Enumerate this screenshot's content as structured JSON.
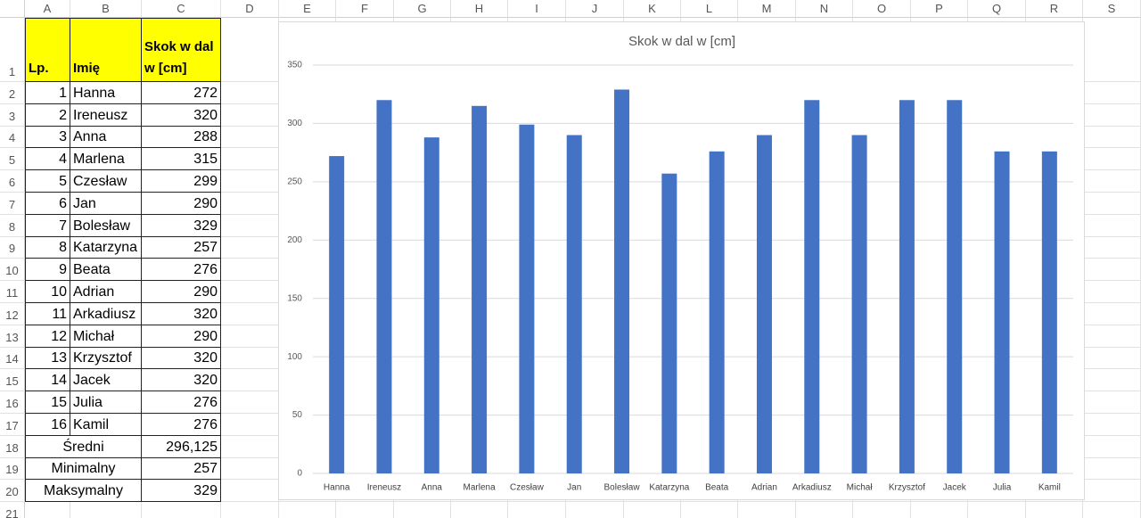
{
  "sheet": {
    "column_headers": [
      "A",
      "B",
      "C",
      "D",
      "E",
      "F",
      "G",
      "H",
      "I",
      "J",
      "K",
      "L",
      "M",
      "N",
      "O",
      "P",
      "Q",
      "R",
      "S"
    ],
    "row_headers": [
      "1",
      "2",
      "3",
      "4",
      "5",
      "6",
      "7",
      "8",
      "9",
      "10",
      "11",
      "12",
      "13",
      "14",
      "15",
      "16",
      "17",
      "18",
      "19",
      "20",
      "21"
    ],
    "table": {
      "header": [
        "Lp.",
        "Imię",
        "Skok w dal w [cm]"
      ],
      "rows": [
        [
          "1",
          "Hanna",
          "272"
        ],
        [
          "2",
          "Ireneusz",
          "320"
        ],
        [
          "3",
          "Anna",
          "288"
        ],
        [
          "4",
          "Marlena",
          "315"
        ],
        [
          "5",
          "Czesław",
          "299"
        ],
        [
          "6",
          "Jan",
          "290"
        ],
        [
          "7",
          "Bolesław",
          "329"
        ],
        [
          "8",
          "Katarzyna",
          "257"
        ],
        [
          "9",
          "Beata",
          "276"
        ],
        [
          "10",
          "Adrian",
          "290"
        ],
        [
          "11",
          "Arkadiusz",
          "320"
        ],
        [
          "12",
          "Michał",
          "290"
        ],
        [
          "13",
          "Krzysztof",
          "320"
        ],
        [
          "14",
          "Jacek",
          "320"
        ],
        [
          "15",
          "Julia",
          "276"
        ],
        [
          "16",
          "Kamil",
          "276"
        ]
      ],
      "summary": [
        [
          "Średni",
          "296,125"
        ],
        [
          "Minimalny",
          "257"
        ],
        [
          "Maksymalny",
          "329"
        ]
      ]
    }
  },
  "chart": {
    "type": "bar",
    "title": "Skok w dal w [cm]",
    "categories": [
      "Hanna",
      "Ireneusz",
      "Anna",
      "Marlena",
      "Czesław",
      "Jan",
      "Bolesław",
      "Katarzyna",
      "Beata",
      "Adrian",
      "Arkadiusz",
      "Michał",
      "Krzysztof",
      "Jacek",
      "Julia",
      "Kamil"
    ],
    "values": [
      272,
      320,
      288,
      315,
      299,
      290,
      329,
      257,
      276,
      290,
      320,
      290,
      320,
      320,
      276,
      276
    ],
    "color": "#4472c4",
    "ylim": [
      0,
      350
    ],
    "yticks": [
      0,
      50,
      100,
      150,
      200,
      250,
      300,
      350
    ],
    "grid": true
  }
}
